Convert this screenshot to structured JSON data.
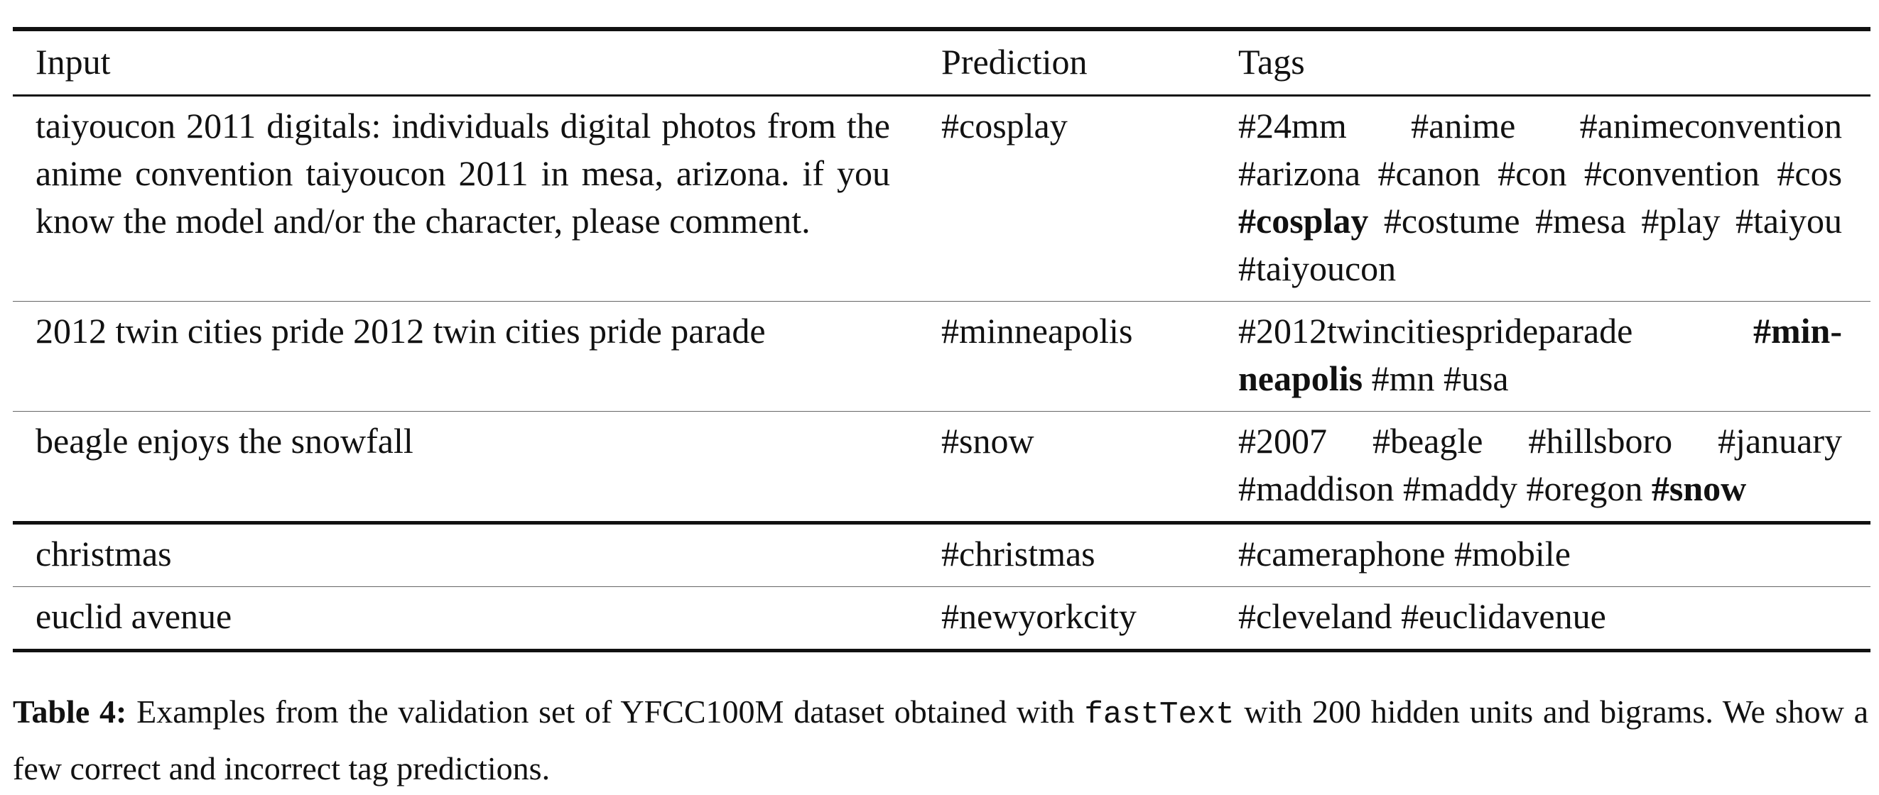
{
  "table": {
    "headers": {
      "input": "Input",
      "prediction": "Prediction",
      "tags": "Tags"
    },
    "rows": [
      {
        "input": "taiyoucon 2011 digitals: individuals digital pho­tos from the anime convention taiyoucon 2011 in mesa, arizona. if you know the model and/or the character, please comment.",
        "prediction": "#cosplay",
        "tags": [
          {
            "text": "#24mm",
            "bold": false
          },
          {
            "text": "#anime",
            "bold": false
          },
          {
            "text": "#animeconvention",
            "bold": false
          },
          {
            "text": "#arizona",
            "bold": false
          },
          {
            "text": "#canon",
            "bold": false
          },
          {
            "text": "#con",
            "bold": false
          },
          {
            "text": "#convention",
            "bold": false
          },
          {
            "text": "#cos",
            "bold": false
          },
          {
            "text": "#cosplay",
            "bold": true
          },
          {
            "text": "#costume",
            "bold": false
          },
          {
            "text": "#mesa",
            "bold": false
          },
          {
            "text": "#play",
            "bold": false
          },
          {
            "text": "#taiyou",
            "bold": false
          },
          {
            "text": "#taiyoucon",
            "bold": false
          }
        ]
      },
      {
        "input": "2012 twin cities pride 2012 twin cities pride pa­rade",
        "prediction": "#minneapolis",
        "tags": [
          {
            "text": "#2012twincitiesprideparade",
            "bold": false
          },
          {
            "text": "#min­neapolis",
            "bold": true
          },
          {
            "text": "#mn",
            "bold": false
          },
          {
            "text": "#usa",
            "bold": false
          }
        ]
      },
      {
        "input": "beagle enjoys the snowfall",
        "prediction": "#snow",
        "tags": [
          {
            "text": "#2007",
            "bold": false
          },
          {
            "text": "#beagle",
            "bold": false
          },
          {
            "text": "#hillsboro",
            "bold": false
          },
          {
            "text": "#january",
            "bold": false
          },
          {
            "text": "#maddison",
            "bold": false
          },
          {
            "text": "#maddy",
            "bold": false
          },
          {
            "text": "#oregon",
            "bold": false
          },
          {
            "text": "#snow",
            "bold": true
          }
        ]
      },
      {
        "input": "christmas",
        "prediction": "#christmas",
        "tags": [
          {
            "text": "#cameraphone",
            "bold": false
          },
          {
            "text": "#mobile",
            "bold": false
          }
        ]
      },
      {
        "input": "euclid avenue",
        "prediction": "#newyorkcity",
        "tags": [
          {
            "text": "#cleveland",
            "bold": false
          },
          {
            "text": "#euclidavenue",
            "bold": false
          }
        ]
      }
    ]
  },
  "caption": {
    "label": "Table 4:",
    "text_before": " Examples from the validation set of YFCC100M dataset obtained with ",
    "code": "fastText",
    "text_after": " with 200 hidden units and bigrams. We show a few correct and incorrect tag predictions."
  }
}
